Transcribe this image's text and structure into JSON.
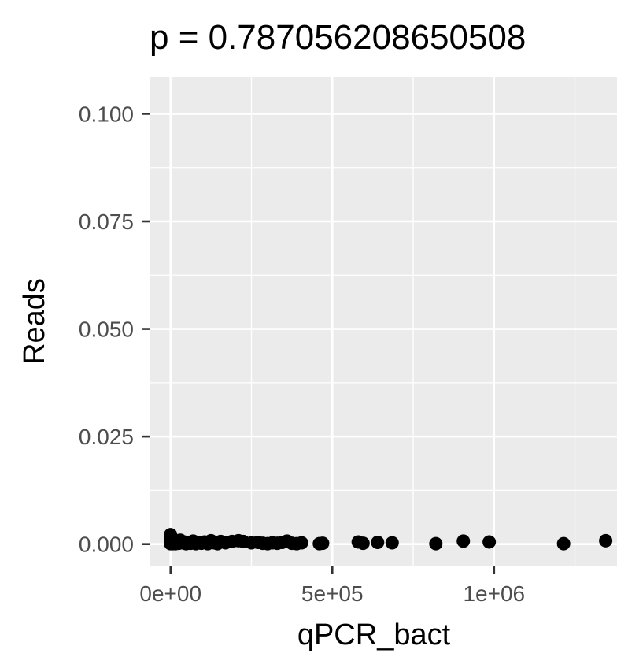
{
  "chart_data": {
    "type": "scatter",
    "title": "p = 0.787056208650508",
    "xlabel": "qPCR_bact",
    "ylabel": "Reads",
    "xlim": [
      -65000,
      1380000
    ],
    "ylim": [
      -0.005,
      0.1085
    ],
    "x_ticks": [
      {
        "value": 0,
        "label": "0e+00"
      },
      {
        "value": 500000,
        "label": "5e+05"
      },
      {
        "value": 1000000,
        "label": "1e+06"
      }
    ],
    "y_ticks": [
      {
        "value": 0.0,
        "label": "0.000"
      },
      {
        "value": 0.025,
        "label": "0.025"
      },
      {
        "value": 0.05,
        "label": "0.050"
      },
      {
        "value": 0.075,
        "label": "0.075"
      },
      {
        "value": 0.1,
        "label": "0.100"
      }
    ],
    "grid": true,
    "series": [
      {
        "color": "#000000",
        "points": [
          [
            0,
            0.0022
          ],
          [
            0,
            0.0009
          ],
          [
            0,
            0.0001
          ],
          [
            2000,
            0.0004
          ],
          [
            4000,
            0.0002
          ],
          [
            6000,
            0.0001
          ],
          [
            10000,
            0.0004
          ],
          [
            15000,
            0.0001
          ],
          [
            20000,
            0.0006
          ],
          [
            25000,
            0.0002
          ],
          [
            30000,
            0.0009
          ],
          [
            35000,
            0.0003
          ],
          [
            42000,
            0.0005
          ],
          [
            48000,
            0.0001
          ],
          [
            55000,
            0.0004
          ],
          [
            62000,
            0.0002
          ],
          [
            70000,
            0.0007
          ],
          [
            78000,
            0.0001
          ],
          [
            86000,
            0.0003
          ],
          [
            95000,
            0.0002
          ],
          [
            105000,
            0.0005
          ],
          [
            115000,
            0.0001
          ],
          [
            125000,
            0.0008
          ],
          [
            135000,
            0.0003
          ],
          [
            145000,
            0.0001
          ],
          [
            155000,
            0.0006
          ],
          [
            170000,
            0.0003
          ],
          [
            190000,
            0.0006
          ],
          [
            210000,
            0.0008
          ],
          [
            225000,
            0.0006
          ],
          [
            250000,
            0.0003
          ],
          [
            270000,
            0.0004
          ],
          [
            285000,
            0.0002
          ],
          [
            300000,
            0.0001
          ],
          [
            315000,
            0.0003
          ],
          [
            330000,
            0.0002
          ],
          [
            345000,
            0.0004
          ],
          [
            360000,
            0.0007
          ],
          [
            375000,
            0.0002
          ],
          [
            390000,
            0.0001
          ],
          [
            405000,
            0.0003
          ],
          [
            460000,
            0.0001
          ],
          [
            470000,
            0.0002
          ],
          [
            580000,
            0.0005
          ],
          [
            595000,
            0.0002
          ],
          [
            640000,
            0.0004
          ],
          [
            685000,
            0.0003
          ],
          [
            820000,
            0.0001
          ],
          [
            905000,
            0.0007
          ],
          [
            985000,
            0.0005
          ],
          [
            1215000,
            0.0001
          ],
          [
            1345000,
            0.0008
          ]
        ]
      }
    ]
  }
}
